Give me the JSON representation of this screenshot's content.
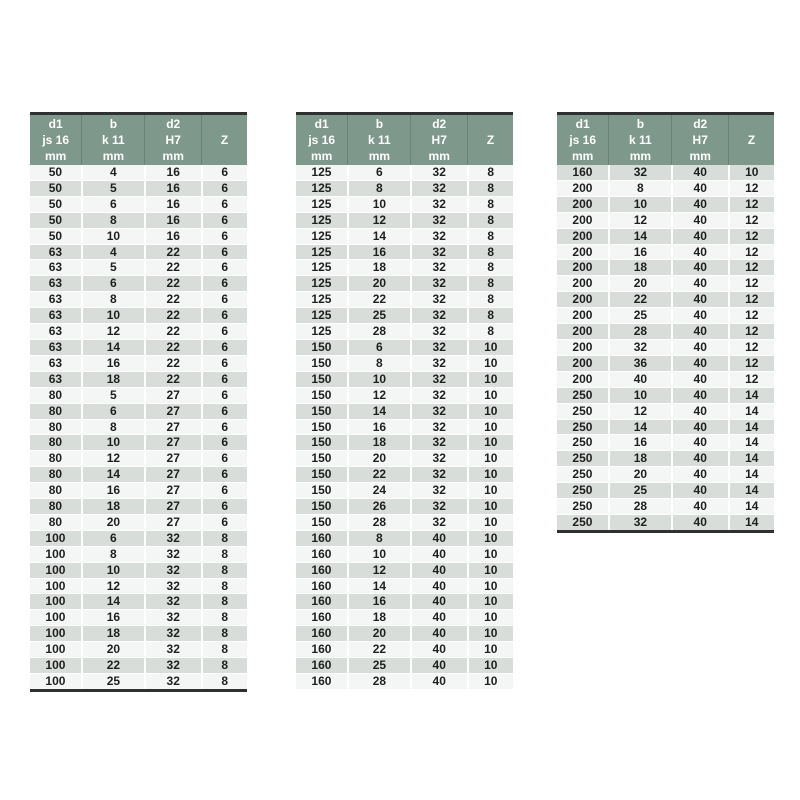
{
  "document_title": "keyway-dimension-tables",
  "colors": {
    "header_bg": "#7e988b",
    "header_text": "#ffffff",
    "row_light": "#f4f6f5",
    "row_dark": "#d8ddda",
    "cell_text": "#1f1f1f",
    "rule_dark": "#2f3130"
  },
  "column_headers": [
    {
      "key": "d1",
      "lines": [
        "d1",
        "js 16",
        "mm"
      ]
    },
    {
      "key": "b",
      "lines": [
        "b",
        "k 11",
        "mm"
      ]
    },
    {
      "key": "d2",
      "lines": [
        "d2",
        "H7",
        "mm"
      ]
    },
    {
      "key": "z",
      "lines": [
        "Z"
      ]
    }
  ],
  "tables": [
    {
      "id": "table-1",
      "stripe_start": "light",
      "closed_bottom": true,
      "rows": [
        [
          50,
          4,
          16,
          6
        ],
        [
          50,
          5,
          16,
          6
        ],
        [
          50,
          6,
          16,
          6
        ],
        [
          50,
          8,
          16,
          6
        ],
        [
          50,
          10,
          16,
          6
        ],
        [
          63,
          4,
          22,
          6
        ],
        [
          63,
          5,
          22,
          6
        ],
        [
          63,
          6,
          22,
          6
        ],
        [
          63,
          8,
          22,
          6
        ],
        [
          63,
          10,
          22,
          6
        ],
        [
          63,
          12,
          22,
          6
        ],
        [
          63,
          14,
          22,
          6
        ],
        [
          63,
          16,
          22,
          6
        ],
        [
          63,
          18,
          22,
          6
        ],
        [
          80,
          5,
          27,
          6
        ],
        [
          80,
          6,
          27,
          6
        ],
        [
          80,
          8,
          27,
          6
        ],
        [
          80,
          10,
          27,
          6
        ],
        [
          80,
          12,
          27,
          6
        ],
        [
          80,
          14,
          27,
          6
        ],
        [
          80,
          16,
          27,
          6
        ],
        [
          80,
          18,
          27,
          6
        ],
        [
          80,
          20,
          27,
          6
        ],
        [
          100,
          6,
          32,
          8
        ],
        [
          100,
          8,
          32,
          8
        ],
        [
          100,
          10,
          32,
          8
        ],
        [
          100,
          12,
          32,
          8
        ],
        [
          100,
          14,
          32,
          8
        ],
        [
          100,
          16,
          32,
          8
        ],
        [
          100,
          18,
          32,
          8
        ],
        [
          100,
          20,
          32,
          8
        ],
        [
          100,
          22,
          32,
          8
        ],
        [
          100,
          25,
          32,
          8
        ]
      ]
    },
    {
      "id": "table-2",
      "stripe_start": "light",
      "closed_bottom": false,
      "rows": [
        [
          125,
          6,
          32,
          8
        ],
        [
          125,
          8,
          32,
          8
        ],
        [
          125,
          10,
          32,
          8
        ],
        [
          125,
          12,
          32,
          8
        ],
        [
          125,
          14,
          32,
          8
        ],
        [
          125,
          16,
          32,
          8
        ],
        [
          125,
          18,
          32,
          8
        ],
        [
          125,
          20,
          32,
          8
        ],
        [
          125,
          22,
          32,
          8
        ],
        [
          125,
          25,
          32,
          8
        ],
        [
          125,
          28,
          32,
          8
        ],
        [
          150,
          6,
          32,
          10
        ],
        [
          150,
          8,
          32,
          10
        ],
        [
          150,
          10,
          32,
          10
        ],
        [
          150,
          12,
          32,
          10
        ],
        [
          150,
          14,
          32,
          10
        ],
        [
          150,
          16,
          32,
          10
        ],
        [
          150,
          18,
          32,
          10
        ],
        [
          150,
          20,
          32,
          10
        ],
        [
          150,
          22,
          32,
          10
        ],
        [
          150,
          24,
          32,
          10
        ],
        [
          150,
          26,
          32,
          10
        ],
        [
          150,
          28,
          32,
          10
        ],
        [
          160,
          8,
          40,
          10
        ],
        [
          160,
          10,
          40,
          10
        ],
        [
          160,
          12,
          40,
          10
        ],
        [
          160,
          14,
          40,
          10
        ],
        [
          160,
          16,
          40,
          10
        ],
        [
          160,
          18,
          40,
          10
        ],
        [
          160,
          20,
          40,
          10
        ],
        [
          160,
          22,
          40,
          10
        ],
        [
          160,
          25,
          40,
          10
        ],
        [
          160,
          28,
          40,
          10
        ]
      ]
    },
    {
      "id": "table-3",
      "stripe_start": "dark",
      "closed_bottom": true,
      "rows": [
        [
          160,
          32,
          40,
          10
        ],
        [
          200,
          8,
          40,
          12
        ],
        [
          200,
          10,
          40,
          12
        ],
        [
          200,
          12,
          40,
          12
        ],
        [
          200,
          14,
          40,
          12
        ],
        [
          200,
          16,
          40,
          12
        ],
        [
          200,
          18,
          40,
          12
        ],
        [
          200,
          20,
          40,
          12
        ],
        [
          200,
          22,
          40,
          12
        ],
        [
          200,
          25,
          40,
          12
        ],
        [
          200,
          28,
          40,
          12
        ],
        [
          200,
          32,
          40,
          12
        ],
        [
          200,
          36,
          40,
          12
        ],
        [
          200,
          40,
          40,
          12
        ],
        [
          250,
          10,
          40,
          14
        ],
        [
          250,
          12,
          40,
          14
        ],
        [
          250,
          14,
          40,
          14
        ],
        [
          250,
          16,
          40,
          14
        ],
        [
          250,
          18,
          40,
          14
        ],
        [
          250,
          20,
          40,
          14
        ],
        [
          250,
          25,
          40,
          14
        ],
        [
          250,
          28,
          40,
          14
        ],
        [
          250,
          32,
          40,
          14
        ]
      ]
    }
  ]
}
